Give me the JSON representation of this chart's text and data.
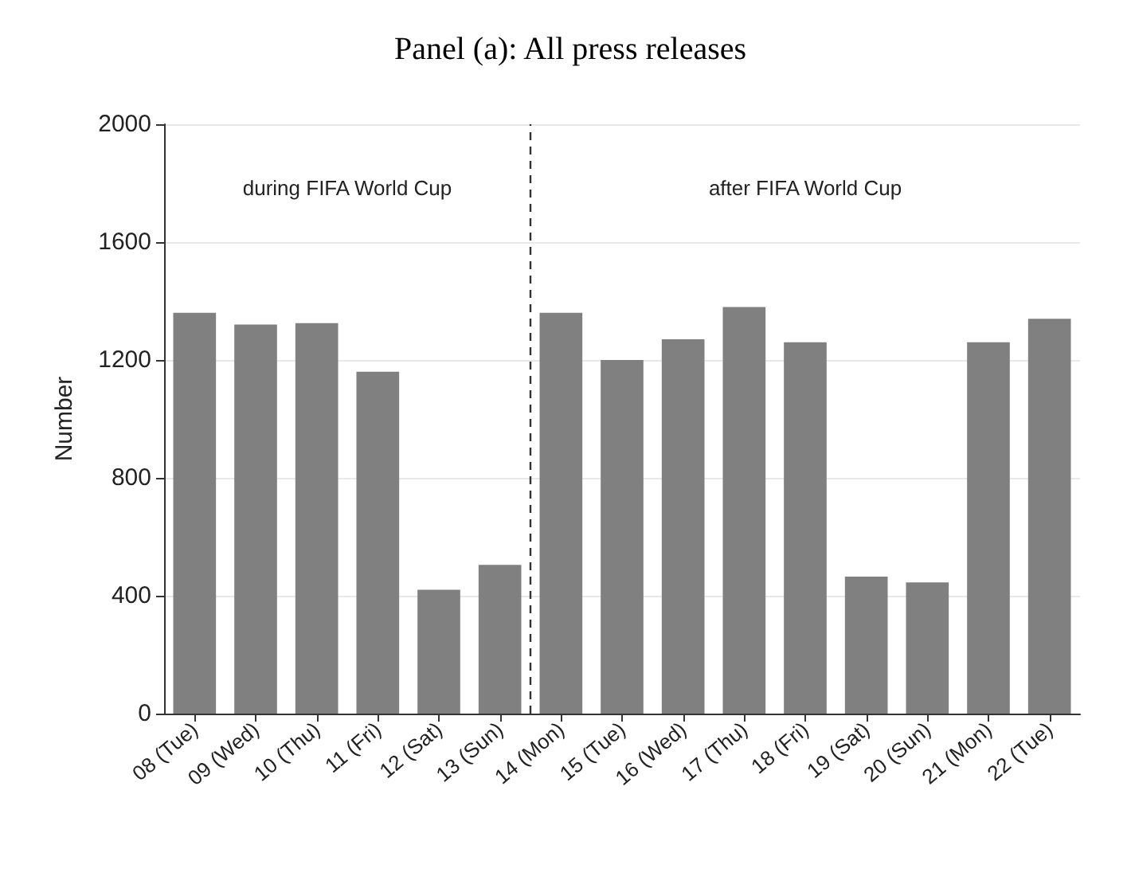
{
  "chart_data": {
    "type": "bar",
    "title": "Panel (a): All press releases",
    "ylabel": "Number",
    "categories": [
      "08 (Tue)",
      "09 (Wed)",
      "10 (Thu)",
      "11 (Fri)",
      "12 (Sat)",
      "13 (Sun)",
      "14 (Mon)",
      "15 (Tue)",
      "16 (Wed)",
      "17 (Thu)",
      "18 (Fri)",
      "19 (Sat)",
      "20 (Sun)",
      "21 (Mon)",
      "22 (Tue)"
    ],
    "values": [
      1360,
      1320,
      1325,
      1160,
      420,
      505,
      1360,
      1200,
      1270,
      1380,
      1260,
      465,
      445,
      1260,
      1340
    ],
    "color": "#808080",
    "ylim": [
      0,
      2000
    ],
    "yticks": [
      0,
      400,
      800,
      1200,
      1600,
      2000
    ],
    "grid": "y",
    "ref_lines": [
      {
        "axis": "x",
        "value": "14 (Mon)",
        "line_style": "dashed",
        "color": "#333333"
      }
    ],
    "annotations": [
      "during FIFA World Cup",
      "after FIFA World Cup"
    ]
  }
}
